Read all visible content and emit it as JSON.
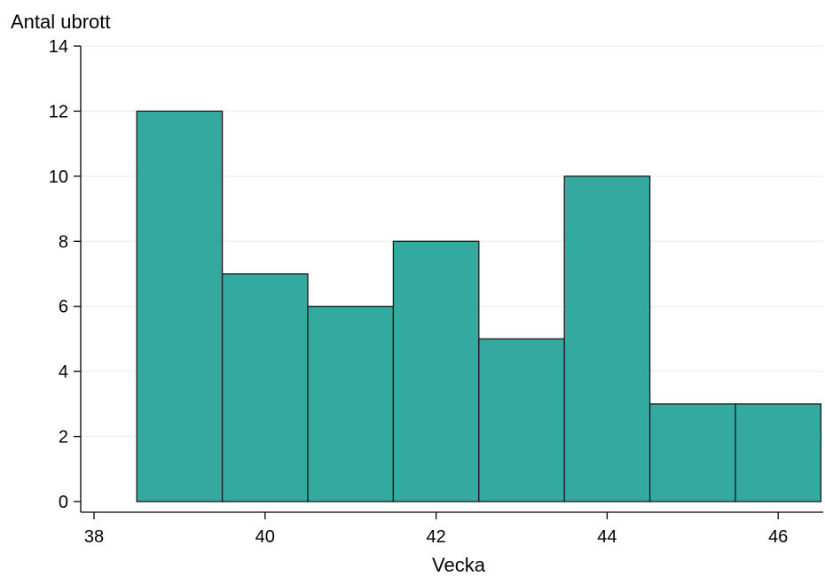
{
  "chart_data": {
    "type": "bar",
    "title": "",
    "xlabel": "Vecka",
    "ylabel": "Antal ubrott",
    "categories": [
      "39",
      "40",
      "41",
      "42",
      "43",
      "44",
      "45",
      "46"
    ],
    "x": [
      39,
      40,
      41,
      42,
      43,
      44,
      45,
      46
    ],
    "values": [
      12,
      7,
      6,
      8,
      5,
      10,
      3,
      3
    ],
    "bin_width": 1,
    "xlim": [
      38,
      46.5
    ],
    "ylim": [
      0,
      14
    ],
    "xticks": [
      "38",
      "40",
      "42",
      "44",
      "46"
    ],
    "yticks": [
      "0",
      "2",
      "4",
      "6",
      "8",
      "10",
      "12",
      "14"
    ],
    "grid": "horizontal",
    "legend": "none",
    "colors": {
      "bar_fill": "#33a9a0",
      "bar_edge": "#1a1a1a",
      "grid": "#eaf2f3"
    }
  }
}
